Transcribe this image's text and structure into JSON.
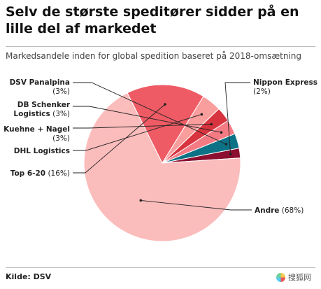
{
  "title": "Selv de største speditører sidder på en lille del af markedet",
  "subtitle": "Markedsandele inden for global spedition baseret på 2018-omsætning",
  "source": "Kilde: DSV",
  "watermark": "搜狐网",
  "chart_data": {
    "type": "pie",
    "title": "Selv de største speditører sidder på en lille del af markedet",
    "subtitle": "Markedsandele inden for global spedition baseret på 2018-omsætning",
    "slices": [
      {
        "name": "Nippon Express",
        "value": 2,
        "value_label": "(2%)",
        "color": "#8b0f2e"
      },
      {
        "name": "Andre",
        "value": 68,
        "value_label": "(68%)",
        "color": "#fbbcbc"
      },
      {
        "name": "Top 6-20",
        "value": 16,
        "value_label": "(16%)",
        "color": "#ee5b65"
      },
      {
        "name": "DHL Logistics",
        "value": 4,
        "value_label": "",
        "color": "#fa9d9d"
      },
      {
        "name": "Kuehne + Nagel",
        "value": 3,
        "value_label": "(3%)",
        "color": "#d8343f"
      },
      {
        "name": "DB Schenker Logistics",
        "value": 3,
        "value_label": "(3%)",
        "color": "#f47b84"
      },
      {
        "name": "DSV Panalpina",
        "value": 3,
        "value_label": "(3%)",
        "color": "#0d7286"
      }
    ],
    "labels": [
      {
        "slice": 0,
        "lines": [
          "Nippon Express",
          "(2%)"
        ]
      },
      {
        "slice": 1,
        "lines": [
          "Andre (68%)"
        ]
      },
      {
        "slice": 2,
        "lines": [
          "Top 6-20 (16%)"
        ]
      },
      {
        "slice": 3,
        "lines": [
          "DHL Logistics"
        ]
      },
      {
        "slice": 4,
        "lines": [
          "Kuehne + Nagel",
          "(3%)"
        ]
      },
      {
        "slice": 5,
        "lines": [
          "DB Schenker",
          "Logistics (3%)"
        ]
      },
      {
        "slice": 6,
        "lines": [
          "DSV Panalpina",
          "(3%)"
        ]
      }
    ],
    "legend": "none"
  }
}
